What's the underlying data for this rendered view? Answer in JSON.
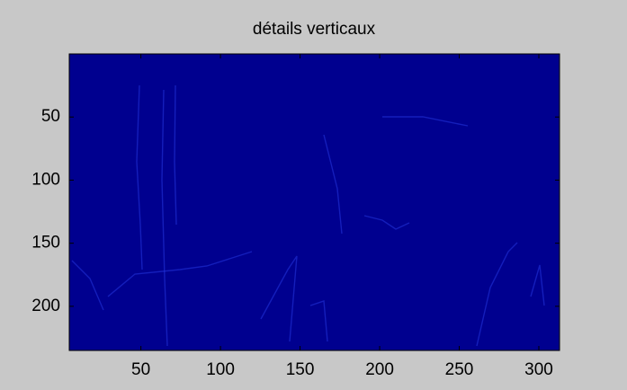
{
  "chart_data": {
    "type": "image",
    "title": "détails verticaux",
    "color": "#00008f",
    "xlim": [
      5,
      313
    ],
    "ylim": [
      0,
      235
    ],
    "y_reversed": true,
    "xticks": [
      50,
      100,
      150,
      200,
      250,
      300
    ],
    "yticks": [
      50,
      100,
      150,
      200
    ]
  }
}
